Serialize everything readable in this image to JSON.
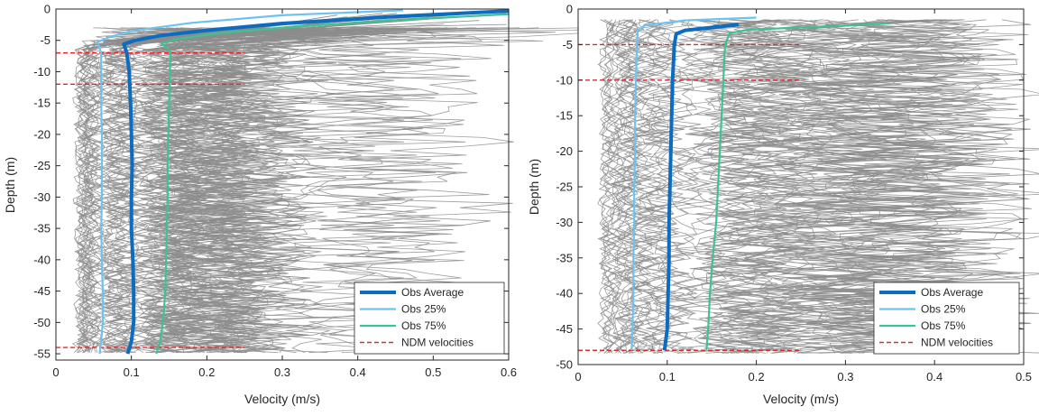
{
  "chart_data": [
    {
      "type": "line",
      "xlabel": "Velocity (m/s)",
      "ylabel": "Depth (m)",
      "xlim": [
        0,
        0.6
      ],
      "ylim": [
        -56,
        0
      ],
      "xticks": [
        "0",
        "0.1",
        "0.2",
        "0.3",
        "0.4",
        "0.5",
        "0.6"
      ],
      "xtick_values": [
        0,
        0.1,
        0.2,
        0.3,
        0.4,
        0.5,
        0.6
      ],
      "yticks": [
        "0",
        "-5",
        "-10",
        "-15",
        "-20",
        "-25",
        "-30",
        "-35",
        "-40",
        "-45",
        "-50",
        "-55"
      ],
      "ytick_values": [
        0,
        -5,
        -10,
        -15,
        -20,
        -25,
        -30,
        -35,
        -40,
        -45,
        -50,
        -55
      ],
      "legend_position": "bottom-right",
      "background_profiles": {
        "count": 80,
        "color": "#8c8c8c",
        "range_x": [
          0.03,
          0.3
        ]
      },
      "series": [
        {
          "name": "Obs Average",
          "color": "#0c6cbf",
          "points": [
            [
              0.6,
              -0.3
            ],
            [
              0.45,
              -1.2
            ],
            [
              0.3,
              -2.3
            ],
            [
              0.2,
              -3.4
            ],
            [
              0.14,
              -4.2
            ],
            [
              0.105,
              -5.0
            ],
            [
              0.09,
              -5.6
            ],
            [
              0.094,
              -7
            ],
            [
              0.097,
              -10
            ],
            [
              0.099,
              -15
            ],
            [
              0.1,
              -20
            ],
            [
              0.101,
              -25
            ],
            [
              0.1,
              -30
            ],
            [
              0.1,
              -35
            ],
            [
              0.102,
              -40
            ],
            [
              0.103,
              -45
            ],
            [
              0.103,
              -50
            ],
            [
              0.1,
              -53
            ],
            [
              0.095,
              -55
            ]
          ]
        },
        {
          "name": "Obs 25%",
          "color": "#6cc3f0",
          "points": [
            [
              0.46,
              -0.2
            ],
            [
              0.3,
              -1.0
            ],
            [
              0.18,
              -2.2
            ],
            [
              0.1,
              -3.5
            ],
            [
              0.07,
              -4.5
            ],
            [
              0.055,
              -5.3
            ],
            [
              0.06,
              -7
            ],
            [
              0.06,
              -10
            ],
            [
              0.06,
              -15
            ],
            [
              0.061,
              -20
            ],
            [
              0.061,
              -25
            ],
            [
              0.061,
              -30
            ],
            [
              0.06,
              -35
            ],
            [
              0.061,
              -40
            ],
            [
              0.062,
              -45
            ],
            [
              0.062,
              -50
            ],
            [
              0.06,
              -53
            ],
            [
              0.058,
              -55
            ]
          ]
        },
        {
          "name": "Obs 75%",
          "color": "#3ec28f",
          "points": [
            [
              0.6,
              -0.8
            ],
            [
              0.45,
              -1.8
            ],
            [
              0.32,
              -2.8
            ],
            [
              0.22,
              -3.8
            ],
            [
              0.16,
              -4.8
            ],
            [
              0.14,
              -5.5
            ],
            [
              0.15,
              -6.5
            ],
            [
              0.152,
              -7
            ],
            [
              0.151,
              -10
            ],
            [
              0.15,
              -15
            ],
            [
              0.149,
              -20
            ],
            [
              0.148,
              -25
            ],
            [
              0.148,
              -30
            ],
            [
              0.147,
              -35
            ],
            [
              0.146,
              -40
            ],
            [
              0.145,
              -45
            ],
            [
              0.142,
              -50
            ],
            [
              0.138,
              -53
            ],
            [
              0.133,
              -55
            ]
          ]
        },
        {
          "name": "NDM velocities",
          "color": "#e8262a",
          "style": "dashed",
          "depths": [
            -7,
            -12,
            -54
          ],
          "x_range": [
            0,
            0.25
          ]
        }
      ]
    },
    {
      "type": "line",
      "xlabel": "Velocity (m/s)",
      "ylabel": "Depth (m)",
      "xlim": [
        0,
        0.5
      ],
      "ylim": [
        -50,
        0
      ],
      "xticks": [
        "0",
        "0.1",
        "0.2",
        "0.3",
        "0.4",
        "0.5"
      ],
      "xtick_values": [
        0,
        0.1,
        0.2,
        0.3,
        0.4,
        0.5
      ],
      "yticks": [
        "0",
        "-5",
        "-10",
        "-15",
        "-20",
        "-25",
        "-30",
        "-35",
        "-40",
        "-45",
        "-50"
      ],
      "ytick_values": [
        0,
        -5,
        -10,
        -15,
        -20,
        -25,
        -30,
        -35,
        -40,
        -45,
        -50
      ],
      "legend_position": "bottom-right",
      "background_profiles": {
        "count": 70,
        "color": "#8c8c8c",
        "range_x": [
          0.03,
          0.42
        ]
      },
      "series": [
        {
          "name": "Obs Average",
          "color": "#0c6cbf",
          "points": [
            [
              0.18,
              -2.2
            ],
            [
              0.12,
              -3
            ],
            [
              0.11,
              -3.5
            ],
            [
              0.108,
              -5
            ],
            [
              0.106,
              -10
            ],
            [
              0.105,
              -15
            ],
            [
              0.104,
              -20
            ],
            [
              0.103,
              -25
            ],
            [
              0.102,
              -30
            ],
            [
              0.102,
              -35
            ],
            [
              0.101,
              -40
            ],
            [
              0.1,
              -45
            ],
            [
              0.097,
              -48
            ]
          ]
        },
        {
          "name": "Obs 25%",
          "color": "#6cc3f0",
          "points": [
            [
              0.2,
              -1.2
            ],
            [
              0.12,
              -1.6
            ],
            [
              0.075,
              -2.3
            ],
            [
              0.067,
              -3
            ],
            [
              0.066,
              -5
            ],
            [
              0.065,
              -10
            ],
            [
              0.064,
              -15
            ],
            [
              0.064,
              -20
            ],
            [
              0.063,
              -25
            ],
            [
              0.063,
              -30
            ],
            [
              0.062,
              -35
            ],
            [
              0.062,
              -40
            ],
            [
              0.061,
              -45
            ],
            [
              0.06,
              -48
            ]
          ]
        },
        {
          "name": "Obs 75%",
          "color": "#3ec28f",
          "points": [
            [
              0.35,
              -2
            ],
            [
              0.27,
              -2.5
            ],
            [
              0.19,
              -2.9
            ],
            [
              0.17,
              -3.4
            ],
            [
              0.165,
              -5
            ],
            [
              0.163,
              -10
            ],
            [
              0.161,
              -15
            ],
            [
              0.159,
              -20
            ],
            [
              0.157,
              -25
            ],
            [
              0.155,
              -30
            ],
            [
              0.151,
              -35
            ],
            [
              0.148,
              -40
            ],
            [
              0.146,
              -45
            ],
            [
              0.144,
              -48
            ]
          ]
        },
        {
          "name": "NDM velocities",
          "color": "#e8262a",
          "style": "dashed",
          "depths": [
            -5,
            -10,
            -48
          ],
          "x_range": [
            0,
            0.25
          ]
        }
      ]
    }
  ]
}
